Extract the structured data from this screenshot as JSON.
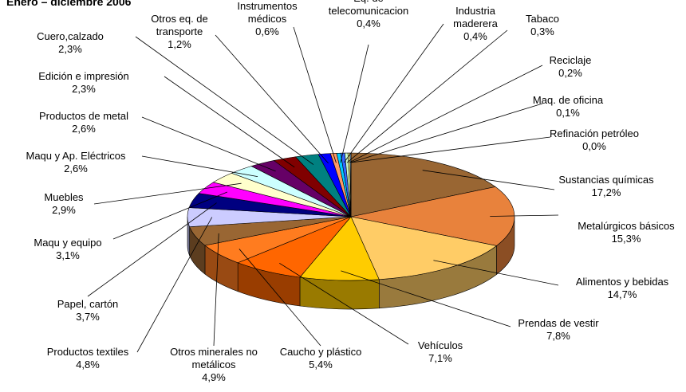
{
  "chart_data": {
    "type": "pie3d",
    "title": "Enero – diciembre 2006",
    "categories": [
      "Sustancias químicas",
      "Metalúrgicos básicos",
      "Alimentos y bebidas",
      "Prendas de vestir",
      "Vehículos",
      "Caucho y plástico",
      "Otros minerales no metálicos",
      "Productos textiles",
      "Papel, cartón",
      "Maqu y equipo",
      "Muebles",
      "Maqu y Ap. Eléctricos",
      "Productos de metal",
      "Edición e impresión",
      "Cuero,calzado",
      "Otros eq. de transporte",
      "Instrumentos médicos",
      "Eq. de telecomunicacion",
      "Industria maderera",
      "Tabaco",
      "Reciclaje",
      "Maq. de oficina",
      "Refinación petróleo"
    ],
    "values": [
      17.2,
      15.3,
      14.7,
      7.8,
      7.1,
      5.4,
      4.9,
      4.8,
      3.7,
      3.1,
      2.9,
      2.6,
      2.6,
      2.3,
      2.3,
      1.2,
      0.6,
      0.4,
      0.4,
      0.3,
      0.2,
      0.1,
      0.0
    ],
    "value_labels": [
      "17,2%",
      "15,3%",
      "14,7%",
      "7,8%",
      "7,1%",
      "5,4%",
      "4,9%",
      "4,8%",
      "3,7%",
      "3,1%",
      "2,9%",
      "2,6%",
      "2,6%",
      "2,3%",
      "2,3%",
      "1,2%",
      "0,6%",
      "0,4%",
      "0,4%",
      "0,3%",
      "0,2%",
      "0,1%",
      "0,0%"
    ],
    "colors": [
      "#996633",
      "#e8823c",
      "#ffcc66",
      "#ffcc00",
      "#ff6600",
      "#ff7c1f",
      "#996633",
      "#ccccff",
      "#000080",
      "#ff00ff",
      "#ffffcc",
      "#ccffff",
      "#660066",
      "#800000",
      "#008080",
      "#0000ff",
      "#ff9966",
      "#00ccff",
      "#3366ff",
      "#ccffcc",
      "#ffff99",
      "#99ccff",
      "#ff99cc"
    ]
  }
}
